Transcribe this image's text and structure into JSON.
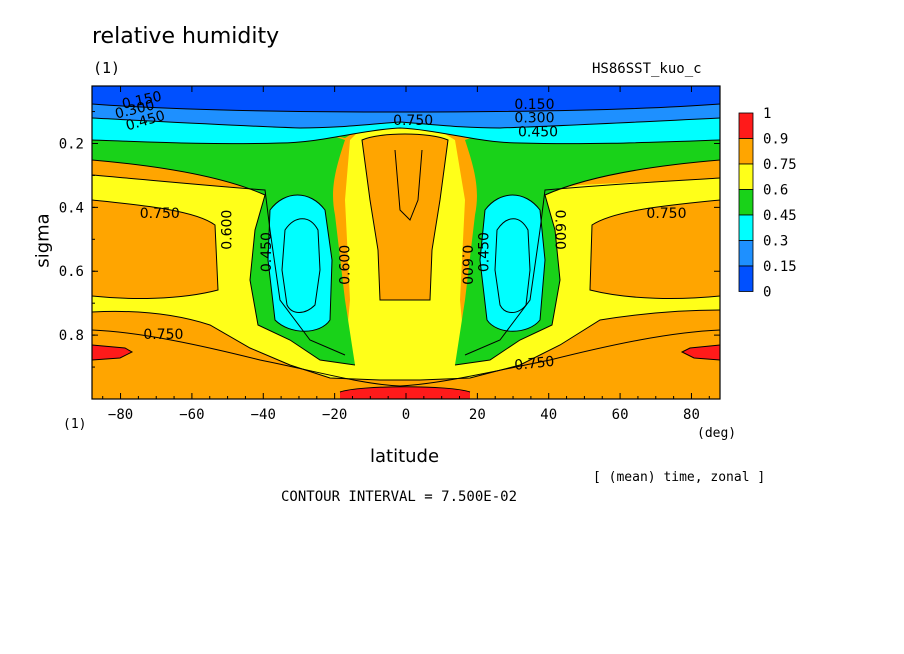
{
  "chart_data": {
    "type": "heatmap",
    "title": "relative humidity",
    "panel_label": "(1)",
    "dataset": "HS86SST_kuo_c",
    "frame_label": "(1)",
    "xlabel": "latitude",
    "xunit": "(deg)",
    "ylabel": "sigma",
    "xlim": [
      -88,
      88
    ],
    "ylim": [
      1.0,
      0.02
    ],
    "x_ticks": [
      -80,
      -60,
      -40,
      -20,
      0,
      20,
      40,
      60,
      80
    ],
    "y_ticks": [
      0.2,
      0.4,
      0.6,
      0.8
    ],
    "mean_note": "[ (mean) time, zonal ]",
    "contour_interval": "CONTOUR INTERVAL = 7.500E-02",
    "colorbar": {
      "levels": [
        "1",
        "0.9",
        "0.75",
        "0.6",
        "0.45",
        "0.3",
        "0.15",
        "0"
      ],
      "colors": [
        "#ff1a1a",
        "#ffa500",
        "#ffff19",
        "#19d219",
        "#00ffff",
        "#1e90ff",
        "#0050ff"
      ]
    },
    "contour_labels": [
      {
        "text": "0.150",
        "lat": -74,
        "sigma": 0.066,
        "angle": -12
      },
      {
        "text": "0.300",
        "lat": -76,
        "sigma": 0.095,
        "angle": -14
      },
      {
        "text": "0.450",
        "lat": -73,
        "sigma": 0.13,
        "angle": -16
      },
      {
        "text": "0.150",
        "lat": 36,
        "sigma": 0.079,
        "angle": 0
      },
      {
        "text": "0.300",
        "lat": 36,
        "sigma": 0.121,
        "angle": 0
      },
      {
        "text": "0.450",
        "lat": 37,
        "sigma": 0.166,
        "angle": 0
      },
      {
        "text": "0.750",
        "lat": 2,
        "sigma": 0.13,
        "angle": 0
      },
      {
        "text": "0.750",
        "lat": -69,
        "sigma": 0.42,
        "angle": 0
      },
      {
        "text": "0.750",
        "lat": 73,
        "sigma": 0.42,
        "angle": 0
      },
      {
        "text": "0.600",
        "lat": -50,
        "sigma": 0.47,
        "angle": -90
      },
      {
        "text": "0.450",
        "lat": -39,
        "sigma": 0.54,
        "angle": -90
      },
      {
        "text": "0.600",
        "lat": -17,
        "sigma": 0.58,
        "angle": -90
      },
      {
        "text": "0.600",
        "lat": 17,
        "sigma": 0.58,
        "angle": 90
      },
      {
        "text": "0.450",
        "lat": 22,
        "sigma": 0.54,
        "angle": -90
      },
      {
        "text": "0.600",
        "lat": 43,
        "sigma": 0.47,
        "angle": 90
      },
      {
        "text": "0.750",
        "lat": -68,
        "sigma": 0.8,
        "angle": 0
      },
      {
        "text": "0.750",
        "lat": 36,
        "sigma": 0.89,
        "angle": -6
      }
    ]
  }
}
